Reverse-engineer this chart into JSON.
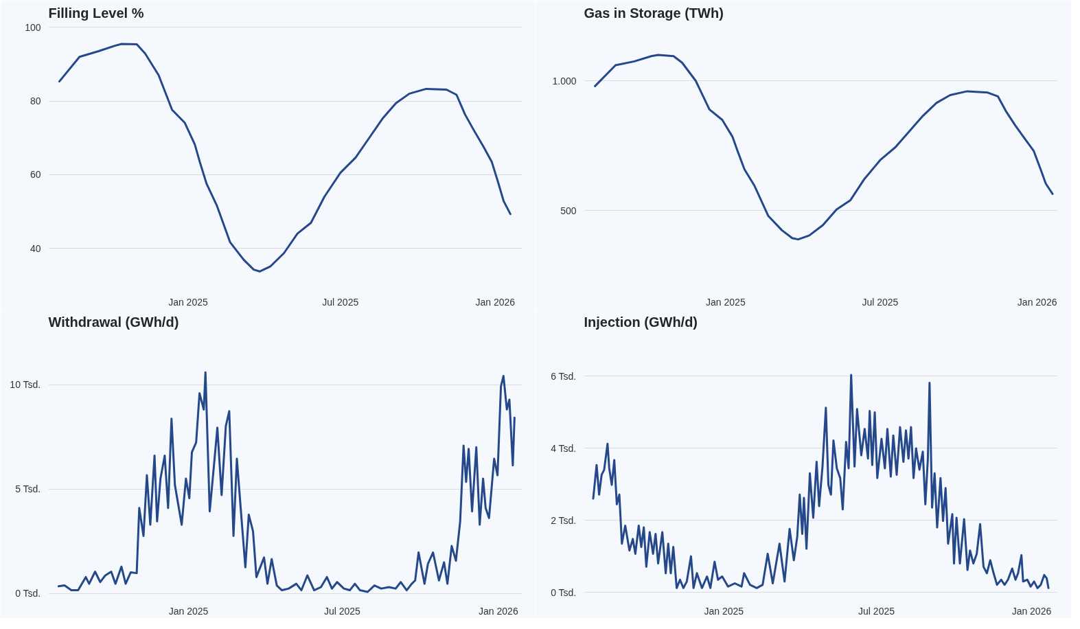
{
  "chart_data": [
    {
      "type": "line",
      "title": "Filling Level %",
      "xlim": [
        "2024-07-19",
        "2026-02-02"
      ],
      "ylim": [
        29,
        101
      ],
      "yticks": [
        40,
        60,
        80,
        100
      ],
      "xticks": [
        {
          "value": "2025-01-01",
          "label": "Jan 2025"
        },
        {
          "value": "2025-07-01",
          "label": "Jul 2025"
        },
        {
          "value": "2026-01-01",
          "label": "Jan 2026"
        }
      ],
      "grid": "y",
      "x": [
        "2024-08-01",
        "2024-08-25",
        "2024-09-16",
        "2024-10-06",
        "2024-10-14",
        "2024-11-01",
        "2024-11-11",
        "2024-11-27",
        "2024-12-13",
        "2024-12-28",
        "2025-01-09",
        "2025-01-15",
        "2025-01-23",
        "2025-02-04",
        "2025-02-20",
        "2025-03-08",
        "2025-03-20",
        "2025-03-27",
        "2025-04-09",
        "2025-04-25",
        "2025-05-11",
        "2025-05-27",
        "2025-06-12",
        "2025-07-01",
        "2025-07-19",
        "2025-08-04",
        "2025-08-20",
        "2025-09-05",
        "2025-09-21",
        "2025-10-11",
        "2025-11-04",
        "2025-11-16",
        "2025-11-26",
        "2025-12-06",
        "2025-12-18",
        "2025-12-28",
        "2026-01-05",
        "2026-01-11",
        "2026-01-19"
      ],
      "series": [
        {
          "color": "#24488a",
          "values": [
            85.3,
            92,
            93.5,
            95,
            95.5,
            95.4,
            92.9,
            87,
            77.6,
            74.1,
            68.2,
            63.4,
            57.5,
            51.7,
            41.6,
            36.9,
            34.2,
            33.7,
            35.1,
            38.7,
            44,
            46.9,
            54,
            60.5,
            64.6,
            69.9,
            75.2,
            79.4,
            82,
            83.3,
            83.1,
            81.7,
            76.4,
            72.3,
            67.6,
            63.4,
            57.5,
            52.8,
            49.3
          ]
        }
      ]
    },
    {
      "type": "line",
      "title": "Gas in Storage (TWh)",
      "xlim": [
        "2024-07-19",
        "2026-01-25"
      ],
      "ylim": [
        200,
        1220
      ],
      "yticks": [
        {
          "value": 500,
          "label": "500"
        },
        {
          "value": 1000,
          "label": "1.000"
        }
      ],
      "xticks": [
        {
          "value": "2025-01-01",
          "label": "Jan 2025"
        },
        {
          "value": "2025-07-01",
          "label": "Jul 2025"
        },
        {
          "value": "2026-01-01",
          "label": "Jan 2026"
        }
      ],
      "grid": "y",
      "x": [
        "2024-08-01",
        "2024-08-25",
        "2024-09-16",
        "2024-10-06",
        "2024-10-14",
        "2024-11-01",
        "2024-11-11",
        "2024-11-27",
        "2024-12-13",
        "2024-12-28",
        "2025-01-09",
        "2025-01-15",
        "2025-01-23",
        "2025-02-04",
        "2025-02-20",
        "2025-03-08",
        "2025-03-20",
        "2025-03-27",
        "2025-04-09",
        "2025-04-25",
        "2025-05-11",
        "2025-05-27",
        "2025-06-12",
        "2025-07-01",
        "2025-07-19",
        "2025-08-04",
        "2025-08-20",
        "2025-09-05",
        "2025-09-21",
        "2025-10-11",
        "2025-11-04",
        "2025-11-16",
        "2025-11-26",
        "2025-12-06",
        "2025-12-18",
        "2025-12-28",
        "2026-01-05",
        "2026-01-11",
        "2026-01-19"
      ],
      "series": [
        {
          "color": "#24488a",
          "values": [
            980,
            1060,
            1075,
            1095,
            1100,
            1095,
            1070,
            1000,
            890,
            850,
            785,
            730,
            660,
            595,
            480,
            425,
            395,
            390,
            405,
            445,
            505,
            540,
            620,
            695,
            745,
            805,
            865,
            915,
            945,
            960,
            955,
            940,
            880,
            830,
            775,
            730,
            660,
            605,
            565
          ]
        }
      ]
    },
    {
      "type": "line",
      "title": "Withdrawal (GWh/d)",
      "xlim": [
        "2024-07-20",
        "2026-01-29"
      ],
      "ylim": [
        -0.2,
        12.5
      ],
      "yticks": [
        {
          "value": 0,
          "label": "0 Tsd."
        },
        {
          "value": 5,
          "label": "5 Tsd."
        },
        {
          "value": 10,
          "label": "10 Tsd."
        }
      ],
      "xticks": [
        {
          "value": "2025-01-01",
          "label": "Jan 2025"
        },
        {
          "value": "2025-07-01",
          "label": "Jul 2025"
        },
        {
          "value": "2026-01-01",
          "label": "Jan 2026"
        }
      ],
      "grid": "y",
      "x": [
        "2024-08-01",
        "2024-08-08",
        "2024-08-16",
        "2024-08-24",
        "2024-09-02",
        "2024-09-06",
        "2024-09-13",
        "2024-09-19",
        "2024-09-25",
        "2024-10-02",
        "2024-10-07",
        "2024-10-14",
        "2024-10-19",
        "2024-10-25",
        "2024-11-01",
        "2024-11-04",
        "2024-11-09",
        "2024-11-13",
        "2024-11-17",
        "2024-11-22",
        "2024-11-25",
        "2024-11-29",
        "2024-12-04",
        "2024-12-08",
        "2024-12-12",
        "2024-12-16",
        "2024-12-24",
        "2024-12-29",
        "2025-01-02",
        "2025-01-05",
        "2025-01-10",
        "2025-01-14",
        "2025-01-19",
        "2025-01-21",
        "2025-01-26",
        "2025-01-31",
        "2025-02-04",
        "2025-02-09",
        "2025-02-14",
        "2025-02-18",
        "2025-02-23",
        "2025-02-27",
        "2025-03-05",
        "2025-03-09",
        "2025-03-13",
        "2025-03-18",
        "2025-03-22",
        "2025-03-31",
        "2025-04-04",
        "2025-04-09",
        "2025-04-15",
        "2025-04-21",
        "2025-04-29",
        "2025-05-08",
        "2025-05-14",
        "2025-05-21",
        "2025-05-29",
        "2025-06-06",
        "2025-06-13",
        "2025-06-19",
        "2025-06-25",
        "2025-07-03",
        "2025-07-10",
        "2025-07-16",
        "2025-07-22",
        "2025-07-31",
        "2025-08-08",
        "2025-08-16",
        "2025-08-25",
        "2025-09-02",
        "2025-09-08",
        "2025-09-15",
        "2025-09-21",
        "2025-09-25",
        "2025-09-29",
        "2025-10-06",
        "2025-10-10",
        "2025-10-16",
        "2025-10-23",
        "2025-10-29",
        "2025-11-02",
        "2025-11-07",
        "2025-11-12",
        "2025-11-17",
        "2025-11-21",
        "2025-11-24",
        "2025-11-27",
        "2025-12-01",
        "2025-12-06",
        "2025-12-10",
        "2025-12-14",
        "2025-12-17",
        "2025-12-21",
        "2025-12-27",
        "2025-12-31",
        "2026-01-04",
        "2026-01-07",
        "2026-01-11",
        "2026-01-14",
        "2026-01-18",
        "2026-01-20"
      ],
      "series": [
        {
          "color": "#24488a",
          "values": [
            0.35,
            0.39,
            0.16,
            0.16,
            0.79,
            0.47,
            1.05,
            0.55,
            0.87,
            1.05,
            0.47,
            1.29,
            0.47,
            1.02,
            0.98,
            4.1,
            2.76,
            5.67,
            3.3,
            6.61,
            3.46,
            5.51,
            6.61,
            4.1,
            8.38,
            5.2,
            3.3,
            5.51,
            4.57,
            6.77,
            7.24,
            9.6,
            8.82,
            10.6,
            3.94,
            6.14,
            7.95,
            4.72,
            8.03,
            8.74,
            2.76,
            6.46,
            3.3,
            1.26,
            3.78,
            2.99,
            0.79,
            1.73,
            0.47,
            1.65,
            0.39,
            0.16,
            0.24,
            0.47,
            0.16,
            0.87,
            0.16,
            0.31,
            0.79,
            0.24,
            0.55,
            0.24,
            0.16,
            0.47,
            0.16,
            0.08,
            0.39,
            0.24,
            0.31,
            0.24,
            0.55,
            0.16,
            0.47,
            0.63,
            1.97,
            0.47,
            1.42,
            1.97,
            0.63,
            1.5,
            0.47,
            2.28,
            1.57,
            3.46,
            7.09,
            5.35,
            6.93,
            3.94,
            7.01,
            3.3,
            5.51,
            4.1,
            3.62,
            6.46,
            5.67,
            9.92,
            10.43,
            8.82,
            9.29,
            6.14,
            8.43
          ]
        }
      ]
    },
    {
      "type": "line",
      "title": "Injection (GWh/d)",
      "xlim": [
        "2024-07-19",
        "2026-02-01"
      ],
      "ylim": [
        -0.15,
        7.2
      ],
      "yticks": [
        {
          "value": 0,
          "label": "0 Tsd."
        },
        {
          "value": 2,
          "label": "2 Tsd."
        },
        {
          "value": 4,
          "label": "4 Tsd."
        },
        {
          "value": 6,
          "label": "6 Tsd."
        }
      ],
      "xticks": [
        {
          "value": "2025-01-01",
          "label": "Jan 2025"
        },
        {
          "value": "2025-07-01",
          "label": "Jul 2025"
        },
        {
          "value": "2026-01-01",
          "label": "Jan 2026"
        }
      ],
      "grid": "y",
      "x": [
        "2024-07-30",
        "2024-08-03",
        "2024-08-06",
        "2024-08-09",
        "2024-08-12",
        "2024-08-16",
        "2024-08-18",
        "2024-08-21",
        "2024-08-24",
        "2024-08-27",
        "2024-08-30",
        "2024-09-02",
        "2024-09-06",
        "2024-09-11",
        "2024-09-15",
        "2024-09-18",
        "2024-09-22",
        "2024-09-25",
        "2024-09-28",
        "2024-10-01",
        "2024-10-05",
        "2024-10-09",
        "2024-10-12",
        "2024-10-15",
        "2024-10-20",
        "2024-10-24",
        "2024-10-27",
        "2024-10-30",
        "2024-11-02",
        "2024-11-06",
        "2024-11-10",
        "2024-11-14",
        "2024-11-18",
        "2024-11-23",
        "2024-11-26",
        "2024-11-30",
        "2024-12-06",
        "2024-12-12",
        "2024-12-16",
        "2024-12-21",
        "2024-12-25",
        "2024-12-30",
        "2025-01-06",
        "2025-01-14",
        "2025-01-22",
        "2025-01-25",
        "2025-02-01",
        "2025-02-09",
        "2025-02-16",
        "2025-02-22",
        "2025-02-28",
        "2025-03-08",
        "2025-03-14",
        "2025-03-20",
        "2025-03-25",
        "2025-03-29",
        "2025-04-01",
        "2025-04-04",
        "2025-04-06",
        "2025-04-09",
        "2025-04-13",
        "2025-04-17",
        "2025-04-21",
        "2025-04-24",
        "2025-04-28",
        "2025-05-02",
        "2025-05-05",
        "2025-05-08",
        "2025-05-11",
        "2025-05-15",
        "2025-05-19",
        "2025-05-22",
        "2025-05-26",
        "2025-05-29",
        "2025-06-01",
        "2025-06-05",
        "2025-06-08",
        "2025-06-13",
        "2025-06-17",
        "2025-06-21",
        "2025-06-23",
        "2025-06-26",
        "2025-06-29",
        "2025-07-02",
        "2025-07-07",
        "2025-07-11",
        "2025-07-14",
        "2025-07-18",
        "2025-07-21",
        "2025-07-25",
        "2025-07-29",
        "2025-08-02",
        "2025-08-05",
        "2025-08-08",
        "2025-08-11",
        "2025-08-14",
        "2025-08-17",
        "2025-08-21",
        "2025-08-25",
        "2025-08-28",
        "2025-08-31",
        "2025-09-02",
        "2025-09-05",
        "2025-09-08",
        "2025-09-11",
        "2025-09-15",
        "2025-09-18",
        "2025-09-21",
        "2025-09-24",
        "2025-09-29",
        "2025-10-01",
        "2025-10-04",
        "2025-10-08",
        "2025-10-13",
        "2025-10-17",
        "2025-10-20",
        "2025-10-24",
        "2025-10-28",
        "2025-11-01",
        "2025-11-05",
        "2025-11-09",
        "2025-11-13",
        "2025-11-17",
        "2025-11-21",
        "2025-11-26",
        "2025-11-30",
        "2025-12-04",
        "2025-12-09",
        "2025-12-13",
        "2025-12-16",
        "2025-12-20",
        "2025-12-22",
        "2025-12-27",
        "2025-12-31",
        "2026-01-04",
        "2026-01-08",
        "2026-01-12",
        "2026-01-16",
        "2026-01-19",
        "2026-01-21"
      ],
      "series": [
        {
          "color": "#24488a",
          "values": [
            2.6,
            3.53,
            2.71,
            3.26,
            3.4,
            4.12,
            3.44,
            2.98,
            3.67,
            2.44,
            2.71,
            1.35,
            1.85,
            1.16,
            1.48,
            1.07,
            1.85,
            1.26,
            1.8,
            0.71,
            1.67,
            1.07,
            1.62,
            0.8,
            1.67,
            0.53,
            1.35,
            0.53,
            1.26,
            0.12,
            0.35,
            0.12,
            0.3,
            1.0,
            0.12,
            0.53,
            0.12,
            0.44,
            0.12,
            0.85,
            0.35,
            0.44,
            0.16,
            0.25,
            0.16,
            0.53,
            0.21,
            0.12,
            0.21,
            1.07,
            0.25,
            1.35,
            0.3,
            1.76,
            0.89,
            1.53,
            2.71,
            1.62,
            2.62,
            1.21,
            3.3,
            2.07,
            3.62,
            2.39,
            3.49,
            5.12,
            2.98,
            2.71,
            4.21,
            3.44,
            3.17,
            2.3,
            4.17,
            3.44,
            6.03,
            3.49,
            5.08,
            3.8,
            4.53,
            3.71,
            5.03,
            3.53,
            4.99,
            3.17,
            4.26,
            3.44,
            4.53,
            3.21,
            4.35,
            3.26,
            4.58,
            3.62,
            4.49,
            3.71,
            4.58,
            3.17,
            3.99,
            3.4,
            3.9,
            2.44,
            3.71,
            5.81,
            2.35,
            3.3,
            1.8,
            3.17,
            1.98,
            2.89,
            1.35,
            2.17,
            0.8,
            2.07,
            0.8,
            2.03,
            0.62,
            1.16,
            0.8,
            1.07,
            1.89,
            0.71,
            0.53,
            0.89,
            0.53,
            0.21,
            0.35,
            0.21,
            0.35,
            0.66,
            0.35,
            0.53,
            1.03,
            0.3,
            0.35,
            0.16,
            0.3,
            0.12,
            0.21,
            0.48,
            0.39,
            0.12
          ]
        }
      ]
    }
  ]
}
